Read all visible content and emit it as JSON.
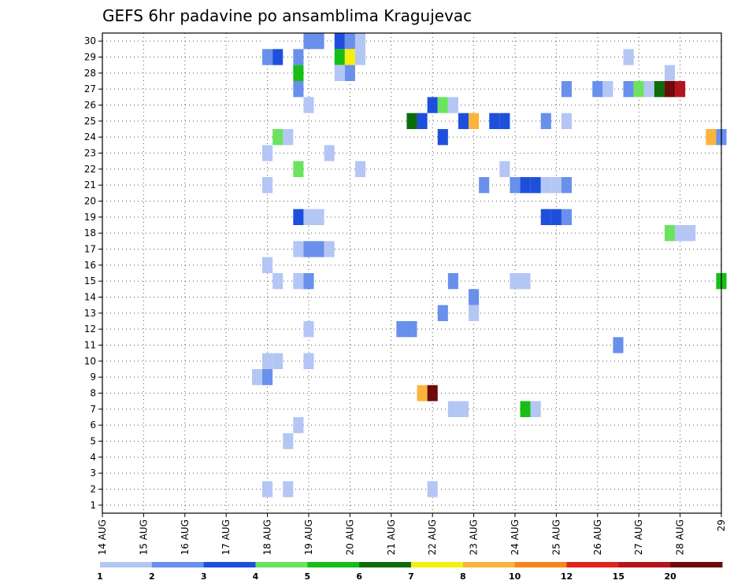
{
  "chart_data": {
    "type": "heatmap",
    "title": "GEFS 6hr padavine po ansamblima Kragujevac",
    "xlabel": "",
    "ylabel": "",
    "x_ticks": [
      "14 AUG",
      "15 AUG",
      "16 AUG",
      "17 AUG",
      "18 AUG",
      "19 AUG",
      "20 AUG",
      "21 AUG",
      "22 AUG",
      "23 AUG",
      "24 AUG",
      "25 AUG",
      "26 AUG",
      "27 AUG",
      "28 AUG",
      "29"
    ],
    "x_range_days": [
      14,
      29
    ],
    "x_step_hours": 6,
    "y_ticks": [
      "1",
      "2",
      "3",
      "4",
      "5",
      "6",
      "7",
      "8",
      "9",
      "10",
      "11",
      "12",
      "13",
      "14",
      "15",
      "16",
      "17",
      "18",
      "19",
      "20",
      "21",
      "22",
      "23",
      "24",
      "25",
      "26",
      "27",
      "28",
      "29",
      "30"
    ],
    "y_range": [
      1,
      30
    ],
    "grid": true,
    "legend_placement": "bottom",
    "legend": {
      "colors": [
        "#b4c6f4",
        "#6890ec",
        "#1e4fdc",
        "#6ae45e",
        "#16be16",
        "#0c6c0c",
        "#f5ef12",
        "#f8b43c",
        "#f6861c",
        "#e0261c",
        "#b4141c",
        "#6e0a0a"
      ],
      "labels": [
        "1",
        "2",
        "3",
        "4",
        "5",
        "6",
        "7",
        "8",
        "10",
        "12",
        "15",
        "20"
      ]
    },
    "cells": [
      {
        "day": 18.0,
        "m": 30,
        "c": "#ffffff"
      },
      {
        "day": 19.0,
        "m": 30,
        "c": "#6890ec"
      },
      {
        "day": 19.25,
        "m": 30,
        "c": "#6890ec"
      },
      {
        "day": 19.75,
        "m": 30,
        "c": "#1e4fdc"
      },
      {
        "day": 20.0,
        "m": 30,
        "c": "#6890ec"
      },
      {
        "day": 20.25,
        "m": 30,
        "c": "#b4c6f4"
      },
      {
        "day": 18.0,
        "m": 29,
        "c": "#6890ec"
      },
      {
        "day": 18.25,
        "m": 29,
        "c": "#1e4fdc"
      },
      {
        "day": 18.75,
        "m": 29,
        "c": "#6890ec"
      },
      {
        "day": 19.75,
        "m": 29,
        "c": "#16be16"
      },
      {
        "day": 20.0,
        "m": 29,
        "c": "#f5ef12"
      },
      {
        "day": 20.25,
        "m": 29,
        "c": "#b4c6f4"
      },
      {
        "day": 26.75,
        "m": 29,
        "c": "#b4c6f4"
      },
      {
        "day": 18.75,
        "m": 28,
        "c": "#16be16"
      },
      {
        "day": 19.75,
        "m": 28,
        "c": "#b4c6f4"
      },
      {
        "day": 20.0,
        "m": 28,
        "c": "#6890ec"
      },
      {
        "day": 27.75,
        "m": 28,
        "c": "#b4c6f4"
      },
      {
        "day": 18.75,
        "m": 27,
        "c": "#6890ec"
      },
      {
        "day": 25.25,
        "m": 27,
        "c": "#6890ec"
      },
      {
        "day": 26.0,
        "m": 27,
        "c": "#6890ec"
      },
      {
        "day": 26.25,
        "m": 27,
        "c": "#b4c6f4"
      },
      {
        "day": 26.75,
        "m": 27,
        "c": "#6890ec"
      },
      {
        "day": 27.0,
        "m": 27,
        "c": "#6ae45e"
      },
      {
        "day": 27.25,
        "m": 27,
        "c": "#b4c6f4"
      },
      {
        "day": 27.5,
        "m": 27,
        "c": "#0c6c0c"
      },
      {
        "day": 27.75,
        "m": 27,
        "c": "#6e0a0a"
      },
      {
        "day": 28.0,
        "m": 27,
        "c": "#b4141c"
      },
      {
        "day": 19.0,
        "m": 26,
        "c": "#b4c6f4"
      },
      {
        "day": 22.0,
        "m": 26,
        "c": "#1e4fdc"
      },
      {
        "day": 22.25,
        "m": 26,
        "c": "#6ae45e"
      },
      {
        "day": 22.5,
        "m": 26,
        "c": "#b4c6f4"
      },
      {
        "day": 21.5,
        "m": 25,
        "c": "#0c6c0c"
      },
      {
        "day": 21.75,
        "m": 25,
        "c": "#1e4fdc"
      },
      {
        "day": 22.75,
        "m": 25,
        "c": "#1e4fdc"
      },
      {
        "day": 23.0,
        "m": 25,
        "c": "#f8b43c"
      },
      {
        "day": 23.5,
        "m": 25,
        "c": "#1e4fdc"
      },
      {
        "day": 23.75,
        "m": 25,
        "c": "#1e4fdc"
      },
      {
        "day": 24.75,
        "m": 25,
        "c": "#6890ec"
      },
      {
        "day": 25.25,
        "m": 25,
        "c": "#b4c6f4"
      },
      {
        "day": 18.25,
        "m": 24,
        "c": "#6ae45e"
      },
      {
        "day": 18.5,
        "m": 24,
        "c": "#b4c6f4"
      },
      {
        "day": 22.25,
        "m": 24,
        "c": "#1e4fdc"
      },
      {
        "day": 28.75,
        "m": 24,
        "c": "#f8b43c"
      },
      {
        "day": 29.0,
        "m": 24,
        "c": "#6890ec"
      },
      {
        "day": 18.0,
        "m": 23,
        "c": "#b4c6f4"
      },
      {
        "day": 19.5,
        "m": 23,
        "c": "#b4c6f4"
      },
      {
        "day": 18.75,
        "m": 22,
        "c": "#6ae45e"
      },
      {
        "day": 20.25,
        "m": 22,
        "c": "#b4c6f4"
      },
      {
        "day": 23.75,
        "m": 22,
        "c": "#b4c6f4"
      },
      {
        "day": 18.0,
        "m": 21,
        "c": "#b4c6f4"
      },
      {
        "day": 23.25,
        "m": 21,
        "c": "#6890ec"
      },
      {
        "day": 24.0,
        "m": 21,
        "c": "#6890ec"
      },
      {
        "day": 24.25,
        "m": 21,
        "c": "#1e4fdc"
      },
      {
        "day": 24.5,
        "m": 21,
        "c": "#1e4fdc"
      },
      {
        "day": 24.75,
        "m": 21,
        "c": "#b4c6f4"
      },
      {
        "day": 25.0,
        "m": 21,
        "c": "#b4c6f4"
      },
      {
        "day": 25.25,
        "m": 21,
        "c": "#6890ec"
      },
      {
        "day": 18.75,
        "m": 19,
        "c": "#1e4fdc"
      },
      {
        "day": 19.0,
        "m": 19,
        "c": "#b4c6f4"
      },
      {
        "day": 19.25,
        "m": 19,
        "c": "#b4c6f4"
      },
      {
        "day": 24.75,
        "m": 19,
        "c": "#1e4fdc"
      },
      {
        "day": 25.0,
        "m": 19,
        "c": "#1e4fdc"
      },
      {
        "day": 25.25,
        "m": 19,
        "c": "#6890ec"
      },
      {
        "day": 27.75,
        "m": 18,
        "c": "#6ae45e"
      },
      {
        "day": 28.0,
        "m": 18,
        "c": "#b4c6f4"
      },
      {
        "day": 28.25,
        "m": 18,
        "c": "#b4c6f4"
      },
      {
        "day": 18.75,
        "m": 17,
        "c": "#b4c6f4"
      },
      {
        "day": 19.0,
        "m": 17,
        "c": "#6890ec"
      },
      {
        "day": 19.25,
        "m": 17,
        "c": "#6890ec"
      },
      {
        "day": 19.5,
        "m": 17,
        "c": "#b4c6f4"
      },
      {
        "day": 18.0,
        "m": 16,
        "c": "#b4c6f4"
      },
      {
        "day": 18.25,
        "m": 15,
        "c": "#b4c6f4"
      },
      {
        "day": 18.75,
        "m": 15,
        "c": "#b4c6f4"
      },
      {
        "day": 19.0,
        "m": 15,
        "c": "#6890ec"
      },
      {
        "day": 22.5,
        "m": 15,
        "c": "#6890ec"
      },
      {
        "day": 24.0,
        "m": 15,
        "c": "#b4c6f4"
      },
      {
        "day": 24.25,
        "m": 15,
        "c": "#b4c6f4"
      },
      {
        "day": 29.0,
        "m": 15,
        "c": "#16be16"
      },
      {
        "day": 23.0,
        "m": 14,
        "c": "#6890ec"
      },
      {
        "day": 22.25,
        "m": 13,
        "c": "#6890ec"
      },
      {
        "day": 23.0,
        "m": 13,
        "c": "#b4c6f4"
      },
      {
        "day": 19.0,
        "m": 12,
        "c": "#b4c6f4"
      },
      {
        "day": 21.25,
        "m": 12,
        "c": "#6890ec"
      },
      {
        "day": 21.5,
        "m": 12,
        "c": "#6890ec"
      },
      {
        "day": 26.5,
        "m": 11,
        "c": "#6890ec"
      },
      {
        "day": 18.0,
        "m": 10,
        "c": "#b4c6f4"
      },
      {
        "day": 18.25,
        "m": 10,
        "c": "#b4c6f4"
      },
      {
        "day": 19.0,
        "m": 10,
        "c": "#b4c6f4"
      },
      {
        "day": 17.75,
        "m": 9,
        "c": "#b4c6f4"
      },
      {
        "day": 18.0,
        "m": 9,
        "c": "#6890ec"
      },
      {
        "day": 21.75,
        "m": 8,
        "c": "#f8b43c"
      },
      {
        "day": 22.0,
        "m": 8,
        "c": "#6e0a0a"
      },
      {
        "day": 22.5,
        "m": 7,
        "c": "#b4c6f4"
      },
      {
        "day": 22.75,
        "m": 7,
        "c": "#b4c6f4"
      },
      {
        "day": 24.25,
        "m": 7,
        "c": "#16be16"
      },
      {
        "day": 24.5,
        "m": 7,
        "c": "#b4c6f4"
      },
      {
        "day": 18.75,
        "m": 6,
        "c": "#b4c6f4"
      },
      {
        "day": 18.5,
        "m": 5,
        "c": "#b4c6f4"
      },
      {
        "day": 18.0,
        "m": 2,
        "c": "#b4c6f4"
      },
      {
        "day": 18.5,
        "m": 2,
        "c": "#b4c6f4"
      },
      {
        "day": 22.0,
        "m": 2,
        "c": "#b4c6f4"
      }
    ]
  }
}
